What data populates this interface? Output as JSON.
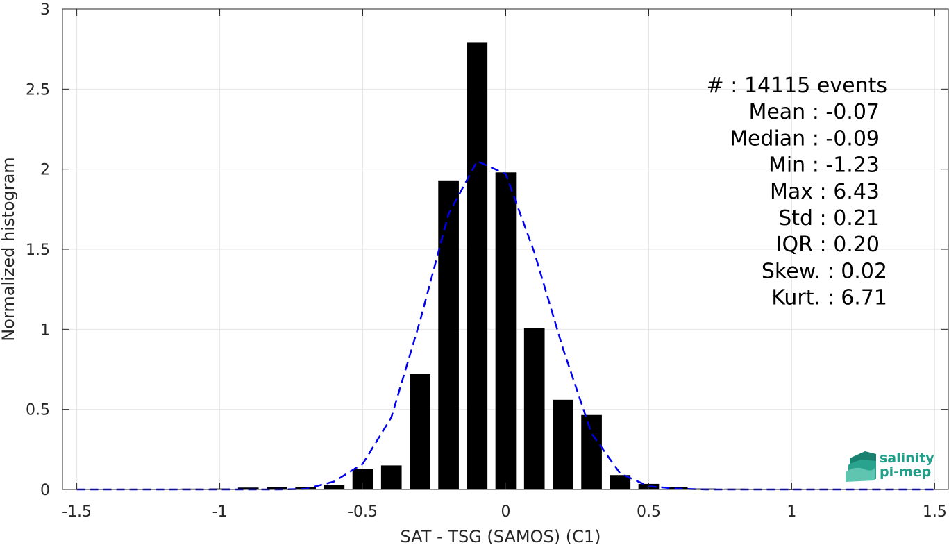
{
  "chart_data": {
    "type": "bar",
    "xlabel": "SAT - TSG (SAMOS) (C1)",
    "ylabel": "Normalized histogram",
    "xlim": [
      -1.55,
      1.55
    ],
    "ylim": [
      0,
      3
    ],
    "xticks": [
      "-1.5",
      "-1",
      "-0.5",
      "0",
      "0.5",
      "1",
      "1.5"
    ],
    "xtick_values": [
      -1.5,
      -1,
      -0.5,
      0,
      0.5,
      1,
      1.5
    ],
    "yticks": [
      "0",
      "0.5",
      "1",
      "1.5",
      "2",
      "2.5",
      "3"
    ],
    "ytick_values": [
      0,
      0.5,
      1,
      1.5,
      2,
      2.5,
      3
    ],
    "grid": true,
    "bar_color": "#000000",
    "fit_color": "#0000ee",
    "bars": {
      "x": [
        -1.5,
        -1.4,
        -1.3,
        -1.2,
        -1.1,
        -1.0,
        -0.9,
        -0.8,
        -0.7,
        -0.6,
        -0.5,
        -0.4,
        -0.3,
        -0.2,
        -0.1,
        0.0,
        0.1,
        0.2,
        0.3,
        0.4,
        0.5,
        0.6,
        0.7,
        0.8,
        0.9,
        1.0,
        1.1,
        1.2,
        1.3,
        1.4,
        1.5
      ],
      "values": [
        0.0,
        0.0,
        0.0,
        0.003,
        0.005,
        0.006,
        0.012,
        0.016,
        0.017,
        0.03,
        0.13,
        0.15,
        0.72,
        1.93,
        2.79,
        1.98,
        1.01,
        0.56,
        0.465,
        0.09,
        0.035,
        0.013,
        0.006,
        0.005,
        0.002,
        0.001,
        0.0,
        0.0,
        0.0,
        0.0,
        0.003
      ]
    },
    "fit": {
      "x": [
        -1.5,
        -1.4,
        -1.3,
        -1.2,
        -1.1,
        -1.0,
        -0.9,
        -0.8,
        -0.7,
        -0.6,
        -0.5,
        -0.4,
        -0.3,
        -0.2,
        -0.1,
        0.0,
        0.1,
        0.2,
        0.3,
        0.4,
        0.5,
        0.6,
        0.7,
        0.8,
        0.9,
        1.0,
        1.1,
        1.2,
        1.3,
        1.4,
        1.5
      ],
      "values": [
        0.0,
        0.0,
        0.0,
        0.0,
        0.0,
        0.0,
        0.0,
        0.0,
        0.003,
        0.05,
        0.16,
        0.45,
        1.05,
        1.72,
        2.05,
        1.97,
        1.48,
        0.88,
        0.35,
        0.1,
        0.02,
        0.005,
        0.0,
        0.0,
        0.0,
        0.0,
        0.0,
        0.0,
        0.0,
        0.0,
        0.0
      ]
    },
    "stats": [
      {
        "label": "#  : 14115 events"
      },
      {
        "label": "Mean : -0.07"
      },
      {
        "label": "Median : -0.09"
      },
      {
        "label": "Min : -1.23"
      },
      {
        "label": "Max : 6.43"
      },
      {
        "label": "Std : 0.21"
      },
      {
        "label": "IQR : 0.20"
      },
      {
        "label": "Skew. : 0.02"
      },
      {
        "label": "Kurt. : 6.71"
      }
    ]
  },
  "logo": {
    "line1": "salinity",
    "line2": "pi-mep",
    "color": "#1f9e8a"
  }
}
